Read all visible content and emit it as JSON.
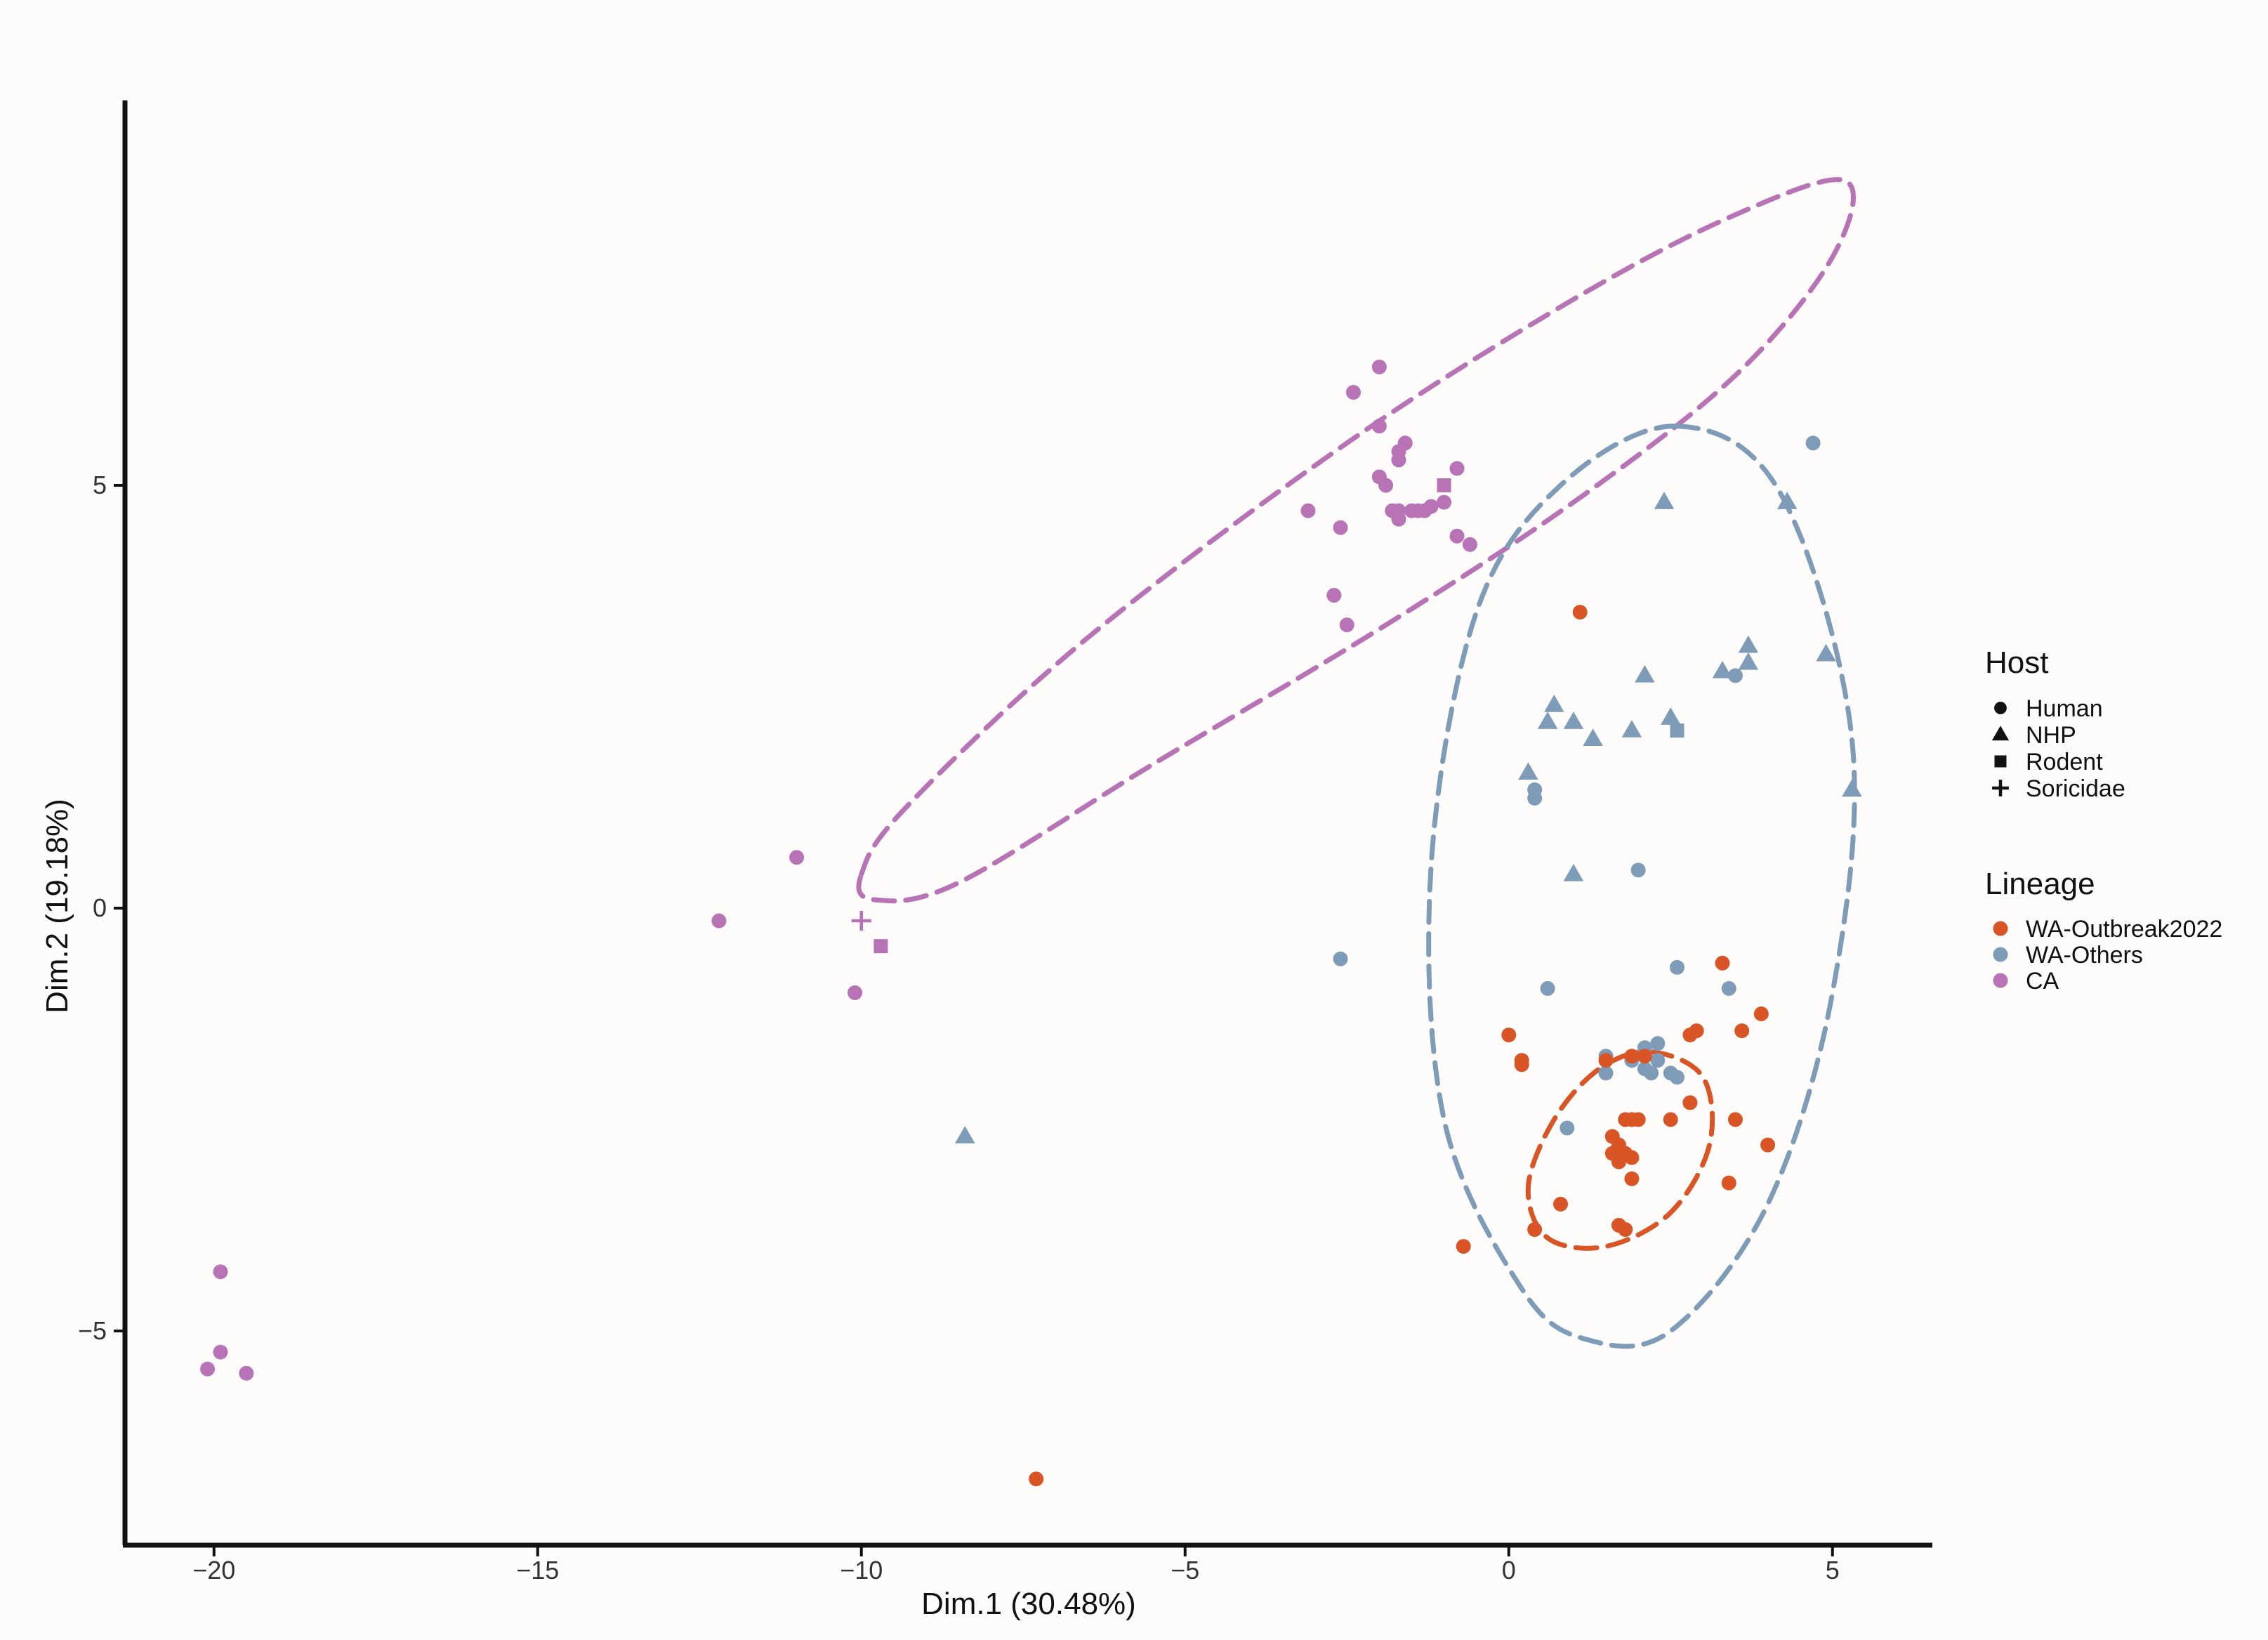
{
  "chart_data": {
    "type": "scatter",
    "title": "",
    "xlabel": "Dim.1 (30.48%)",
    "ylabel": "Dim.2 (19.18%)",
    "xlim": [
      -21.5,
      6.5
    ],
    "ylim": [
      -7.5,
      9.5
    ],
    "x_ticks": [
      -20,
      -15,
      -10,
      -5,
      0,
      5
    ],
    "x_tick_labels": [
      "−20",
      "−15",
      "−10",
      "−5",
      "0",
      "5"
    ],
    "y_ticks": [
      -5,
      0,
      5
    ],
    "y_tick_labels": [
      "−5",
      "0",
      "5"
    ],
    "grid": false,
    "legend_position": "right",
    "legend": {
      "host_title": "Host",
      "host_entries": [
        {
          "label": "Human",
          "shape": "circle"
        },
        {
          "label": "NHP",
          "shape": "triangle"
        },
        {
          "label": "Rodent",
          "shape": "square"
        },
        {
          "label": "Soricidae",
          "shape": "plus"
        }
      ],
      "lineage_title": "Lineage",
      "lineage_entries": [
        {
          "label": "WA-Outbreak2022",
          "color": "#d95526"
        },
        {
          "label": "WA-Others",
          "color": "#7e9cb8"
        },
        {
          "label": "CA",
          "color": "#b773b6"
        }
      ]
    },
    "colors": {
      "WA-Outbreak2022": "#d95526",
      "WA-Others": "#7e9cb8",
      "CA": "#b773b6"
    },
    "ellipses": [
      {
        "lineage": "CA",
        "points": [
          [
            -10.0,
            0.4
          ],
          [
            -9.3,
            1.2
          ],
          [
            -6.5,
            3.2
          ],
          [
            -2.5,
            5.5
          ],
          [
            1.0,
            7.2
          ],
          [
            3.5,
            8.2
          ],
          [
            5.2,
            8.6
          ],
          [
            5.0,
            7.7
          ],
          [
            3.5,
            6.3
          ],
          [
            1.0,
            4.8
          ],
          [
            -2.0,
            3.3
          ],
          [
            -5.5,
            1.7
          ],
          [
            -8.5,
            0.3
          ],
          [
            -9.8,
            0.1
          ]
        ]
      },
      {
        "lineage": "WA-Others",
        "points": [
          [
            2.6,
            5.7
          ],
          [
            4.2,
            4.9
          ],
          [
            5.3,
            2.0
          ],
          [
            5.0,
            -1.0
          ],
          [
            4.0,
            -3.5
          ],
          [
            2.5,
            -5.0
          ],
          [
            1.2,
            -5.1
          ],
          [
            0.2,
            -4.5
          ],
          [
            -1.0,
            -2.5
          ],
          [
            -1.2,
            0.5
          ],
          [
            -0.5,
            3.5
          ],
          [
            0.8,
            5.0
          ]
        ]
      },
      {
        "lineage": "WA-Outbreak2022",
        "points": [
          [
            2.2,
            -1.7
          ],
          [
            3.0,
            -2.0
          ],
          [
            3.1,
            -2.8
          ],
          [
            2.5,
            -3.6
          ],
          [
            1.5,
            -4.0
          ],
          [
            0.6,
            -3.9
          ],
          [
            0.3,
            -3.3
          ],
          [
            0.7,
            -2.5
          ],
          [
            1.4,
            -1.9
          ]
        ]
      }
    ],
    "series": [
      {
        "lineage": "CA",
        "points": [
          {
            "x": -2.0,
            "y": 6.4,
            "host": "Human"
          },
          {
            "x": -2.4,
            "y": 6.1,
            "host": "Human"
          },
          {
            "x": -2.0,
            "y": 5.7,
            "host": "Human"
          },
          {
            "x": -1.6,
            "y": 5.5,
            "host": "Human"
          },
          {
            "x": -1.7,
            "y": 5.4,
            "host": "Human"
          },
          {
            "x": -1.7,
            "y": 5.3,
            "host": "Human"
          },
          {
            "x": -0.8,
            "y": 5.2,
            "host": "Human"
          },
          {
            "x": -2.0,
            "y": 5.1,
            "host": "Human"
          },
          {
            "x": -1.9,
            "y": 5.0,
            "host": "Human"
          },
          {
            "x": -1.0,
            "y": 5.0,
            "host": "Rodent"
          },
          {
            "x": -1.0,
            "y": 4.8,
            "host": "Human"
          },
          {
            "x": -1.2,
            "y": 4.75,
            "host": "Human"
          },
          {
            "x": -1.3,
            "y": 4.7,
            "host": "Human"
          },
          {
            "x": -1.4,
            "y": 4.7,
            "host": "Human"
          },
          {
            "x": -1.5,
            "y": 4.7,
            "host": "Human"
          },
          {
            "x": -1.7,
            "y": 4.7,
            "host": "Human"
          },
          {
            "x": -1.8,
            "y": 4.7,
            "host": "Human"
          },
          {
            "x": -1.7,
            "y": 4.6,
            "host": "Human"
          },
          {
            "x": -3.1,
            "y": 4.7,
            "host": "Human"
          },
          {
            "x": -2.6,
            "y": 4.5,
            "host": "Human"
          },
          {
            "x": -0.8,
            "y": 4.4,
            "host": "Human"
          },
          {
            "x": -0.6,
            "y": 4.3,
            "host": "Human"
          },
          {
            "x": -2.7,
            "y": 3.7,
            "host": "Human"
          },
          {
            "x": -2.5,
            "y": 3.35,
            "host": "Human"
          },
          {
            "x": -11.0,
            "y": 0.6,
            "host": "Human"
          },
          {
            "x": -12.2,
            "y": -0.15,
            "host": "Human"
          },
          {
            "x": -10.0,
            "y": -0.15,
            "host": "Soricidae"
          },
          {
            "x": -9.7,
            "y": -0.45,
            "host": "Rodent"
          },
          {
            "x": -10.1,
            "y": -1.0,
            "host": "Human"
          },
          {
            "x": -19.9,
            "y": -4.3,
            "host": "Human"
          },
          {
            "x": -19.9,
            "y": -5.25,
            "host": "Human"
          },
          {
            "x": -20.1,
            "y": -5.45,
            "host": "Human"
          },
          {
            "x": -19.5,
            "y": -5.5,
            "host": "Human"
          }
        ]
      },
      {
        "lineage": "WA-Others",
        "points": [
          {
            "x": 4.7,
            "y": 5.5,
            "host": "Human"
          },
          {
            "x": 2.4,
            "y": 4.8,
            "host": "NHP"
          },
          {
            "x": 4.3,
            "y": 4.8,
            "host": "NHP"
          },
          {
            "x": 3.7,
            "y": 3.1,
            "host": "NHP"
          },
          {
            "x": 4.9,
            "y": 3.0,
            "host": "NHP"
          },
          {
            "x": 3.7,
            "y": 2.9,
            "host": "NHP"
          },
          {
            "x": 3.3,
            "y": 2.8,
            "host": "NHP"
          },
          {
            "x": 3.5,
            "y": 2.75,
            "host": "Human"
          },
          {
            "x": 2.1,
            "y": 2.75,
            "host": "NHP"
          },
          {
            "x": 0.7,
            "y": 2.4,
            "host": "NHP"
          },
          {
            "x": 0.6,
            "y": 2.2,
            "host": "NHP"
          },
          {
            "x": 1.0,
            "y": 2.2,
            "host": "NHP"
          },
          {
            "x": 2.5,
            "y": 2.25,
            "host": "NHP"
          },
          {
            "x": 1.9,
            "y": 2.1,
            "host": "NHP"
          },
          {
            "x": 2.6,
            "y": 2.1,
            "host": "Rodent"
          },
          {
            "x": 1.3,
            "y": 2.0,
            "host": "NHP"
          },
          {
            "x": 0.3,
            "y": 1.6,
            "host": "NHP"
          },
          {
            "x": 0.4,
            "y": 1.4,
            "host": "Human"
          },
          {
            "x": 0.4,
            "y": 1.3,
            "host": "Human"
          },
          {
            "x": 5.3,
            "y": 1.4,
            "host": "NHP"
          },
          {
            "x": 1.0,
            "y": 0.4,
            "host": "NHP"
          },
          {
            "x": 2.0,
            "y": 0.45,
            "host": "Human"
          },
          {
            "x": -2.6,
            "y": -0.6,
            "host": "Human"
          },
          {
            "x": 2.6,
            "y": -0.7,
            "host": "Human"
          },
          {
            "x": 0.6,
            "y": -0.95,
            "host": "Human"
          },
          {
            "x": 3.4,
            "y": -0.95,
            "host": "Human"
          },
          {
            "x": 2.1,
            "y": -1.65,
            "host": "Human"
          },
          {
            "x": 2.3,
            "y": -1.6,
            "host": "Human"
          },
          {
            "x": 1.5,
            "y": -1.75,
            "host": "Human"
          },
          {
            "x": 1.9,
            "y": -1.8,
            "host": "Human"
          },
          {
            "x": 2.3,
            "y": -1.8,
            "host": "Human"
          },
          {
            "x": 2.1,
            "y": -1.9,
            "host": "Human"
          },
          {
            "x": 1.5,
            "y": -1.95,
            "host": "Human"
          },
          {
            "x": 2.2,
            "y": -1.95,
            "host": "Human"
          },
          {
            "x": 2.5,
            "y": -1.95,
            "host": "Human"
          },
          {
            "x": 2.6,
            "y": -2.0,
            "host": "Human"
          },
          {
            "x": 0.9,
            "y": -2.6,
            "host": "Human"
          },
          {
            "x": -8.4,
            "y": -2.7,
            "host": "NHP"
          }
        ]
      },
      {
        "lineage": "WA-Outbreak2022",
        "points": [
          {
            "x": 1.1,
            "y": 3.5,
            "host": "Human"
          },
          {
            "x": 3.3,
            "y": -0.65,
            "host": "Human"
          },
          {
            "x": 3.9,
            "y": -1.25,
            "host": "Human"
          },
          {
            "x": 2.9,
            "y": -1.45,
            "host": "Human"
          },
          {
            "x": 3.6,
            "y": -1.45,
            "host": "Human"
          },
          {
            "x": 2.8,
            "y": -1.5,
            "host": "Human"
          },
          {
            "x": 0.0,
            "y": -1.5,
            "host": "Human"
          },
          {
            "x": 0.2,
            "y": -1.8,
            "host": "Human"
          },
          {
            "x": 0.2,
            "y": -1.85,
            "host": "Human"
          },
          {
            "x": 1.5,
            "y": -1.8,
            "host": "Human"
          },
          {
            "x": 1.9,
            "y": -1.75,
            "host": "Human"
          },
          {
            "x": 2.1,
            "y": -1.75,
            "host": "Human"
          },
          {
            "x": 2.8,
            "y": -2.3,
            "host": "Human"
          },
          {
            "x": 1.8,
            "y": -2.5,
            "host": "Human"
          },
          {
            "x": 1.9,
            "y": -2.5,
            "host": "Human"
          },
          {
            "x": 2.0,
            "y": -2.5,
            "host": "Human"
          },
          {
            "x": 2.5,
            "y": -2.5,
            "host": "Human"
          },
          {
            "x": 3.5,
            "y": -2.5,
            "host": "Human"
          },
          {
            "x": 1.6,
            "y": -2.7,
            "host": "Human"
          },
          {
            "x": 1.7,
            "y": -2.8,
            "host": "Human"
          },
          {
            "x": 1.6,
            "y": -2.9,
            "host": "Human"
          },
          {
            "x": 1.8,
            "y": -2.9,
            "host": "Human"
          },
          {
            "x": 1.9,
            "y": -2.95,
            "host": "Human"
          },
          {
            "x": 1.7,
            "y": -3.0,
            "host": "Human"
          },
          {
            "x": 4.0,
            "y": -2.8,
            "host": "Human"
          },
          {
            "x": 1.9,
            "y": -3.2,
            "host": "Human"
          },
          {
            "x": 3.4,
            "y": -3.25,
            "host": "Human"
          },
          {
            "x": 0.8,
            "y": -3.5,
            "host": "Human"
          },
          {
            "x": 1.7,
            "y": -3.75,
            "host": "Human"
          },
          {
            "x": 1.8,
            "y": -3.8,
            "host": "Human"
          },
          {
            "x": 0.4,
            "y": -3.8,
            "host": "Human"
          },
          {
            "x": -0.7,
            "y": -4.0,
            "host": "Human"
          },
          {
            "x": -7.3,
            "y": -6.75,
            "host": "Human"
          }
        ]
      }
    ]
  }
}
